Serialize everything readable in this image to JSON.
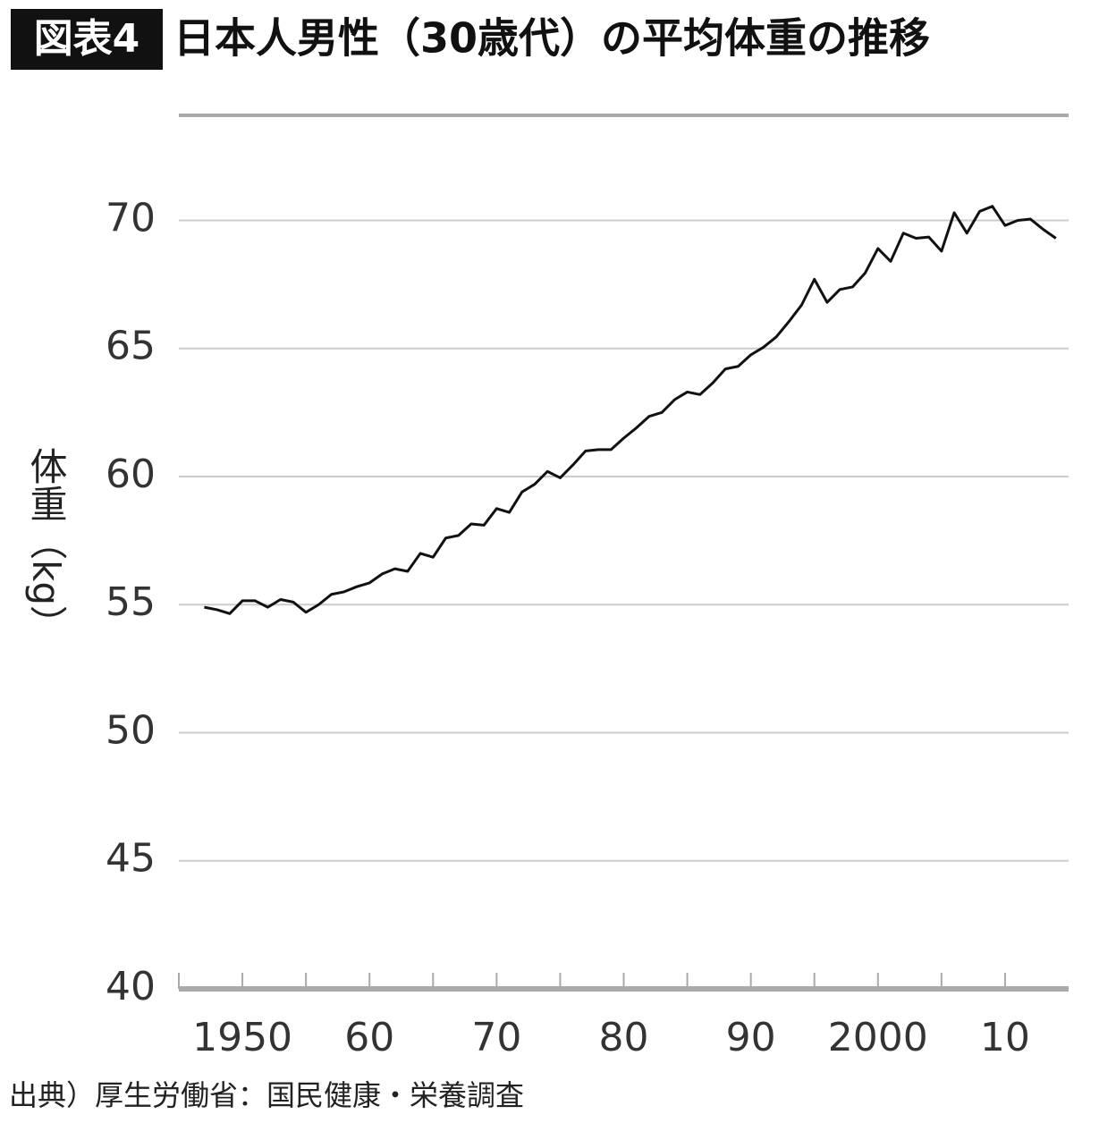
{
  "chart_data": {
    "type": "line",
    "badge": "図表4",
    "title": "日本人男性（30歳代）の平均体重の推移",
    "y_label": "体重（kg）",
    "source": "出典）厚生労働省：国民健康・栄養調査",
    "x": [
      1947,
      1948,
      1949,
      1950,
      1951,
      1952,
      1953,
      1954,
      1955,
      1956,
      1957,
      1958,
      1959,
      1960,
      1961,
      1962,
      1963,
      1964,
      1965,
      1966,
      1967,
      1968,
      1969,
      1970,
      1971,
      1972,
      1973,
      1974,
      1975,
      1976,
      1977,
      1978,
      1979,
      1980,
      1981,
      1982,
      1983,
      1984,
      1985,
      1986,
      1987,
      1988,
      1989,
      1990,
      1991,
      1992,
      1993,
      1994,
      1995,
      1996,
      1997,
      1998,
      1999,
      2000,
      2001,
      2002,
      2003,
      2004,
      2005,
      2006,
      2007,
      2008,
      2009,
      2010,
      2011,
      2012,
      2013,
      2014
    ],
    "series": [
      {
        "color": "#111111",
        "values": [
          54.9,
          54.8,
          54.65,
          55.15,
          55.15,
          54.9,
          55.2,
          55.1,
          54.7,
          55.0,
          55.4,
          55.5,
          55.7,
          55.85,
          56.2,
          56.4,
          56.3,
          57.0,
          56.85,
          57.6,
          57.7,
          58.15,
          58.1,
          58.75,
          58.6,
          59.4,
          59.7,
          60.2,
          59.95,
          60.45,
          61.0,
          61.05,
          61.05,
          61.5,
          61.9,
          62.35,
          62.5,
          63.0,
          63.3,
          63.2,
          63.65,
          64.2,
          64.3,
          64.75,
          65.05,
          65.45,
          66.05,
          66.7,
          67.7,
          66.8,
          67.3,
          67.4,
          67.95,
          68.9,
          68.4,
          69.5,
          69.3,
          69.35,
          68.8,
          70.3,
          69.5,
          70.35,
          70.55,
          69.8,
          70.0,
          70.05,
          69.65,
          69.3
        ]
      }
    ],
    "xlim": [
      1945,
      2015
    ],
    "xticks": [
      {
        "value": 1950,
        "label": "1950"
      },
      {
        "value": 1960,
        "label": "60"
      },
      {
        "value": 1970,
        "label": "70"
      },
      {
        "value": 1980,
        "label": "80"
      },
      {
        "value": 1990,
        "label": "90"
      },
      {
        "value": 2000,
        "label": "2000"
      },
      {
        "value": 2010,
        "label": "10"
      }
    ],
    "xminorticks": [
      1945,
      1955,
      1965,
      1975,
      1985,
      1995,
      2005
    ],
    "ylim": [
      40,
      74.1
    ],
    "yticks": [
      40,
      45,
      50,
      55,
      60,
      65,
      70
    ],
    "grid": true
  }
}
